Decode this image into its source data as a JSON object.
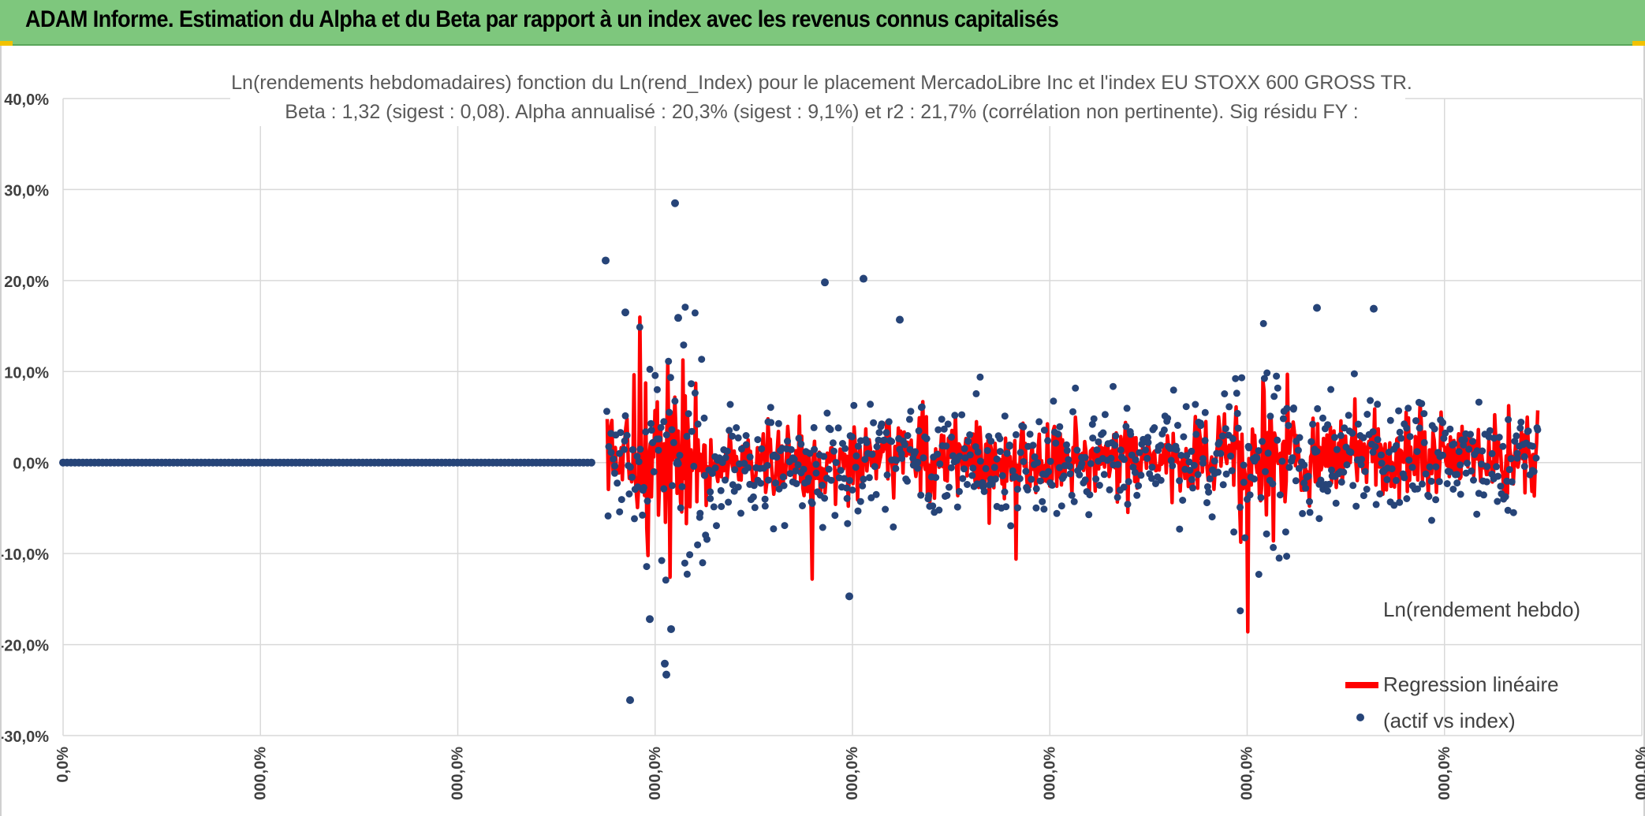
{
  "header": {
    "title": "ADAM Informe. Estimation du Alpha et du Beta par rapport à un index avec les revenus connus capitalisés"
  },
  "colors": {
    "header_bg": "#7ec77d",
    "scatter": "#264478",
    "regression": "#ff0000",
    "grid": "#d9d9d9"
  },
  "chart_data": {
    "type": "scatter",
    "title": "Ln(rendements hebdomadaires) fonction du Ln(rend_Index) pour le placement MercadoLibre Inc et l'index EU STOXX 600 GROSS TR.",
    "subtitle": "Beta : 1,32 (sigest : 0,08). Alpha annualisé : 20,3% (sigest : 9,1%) et r2 : 21,7% (corrélation non pertinente). Sig résidu FY :",
    "xlabel": "",
    "ylabel": "",
    "ylim": [
      -30,
      40
    ],
    "y_ticks": [
      {
        "value": 40,
        "label": "40,0%"
      },
      {
        "value": 30,
        "label": "30,0%"
      },
      {
        "value": 20,
        "label": "20,0%"
      },
      {
        "value": 10,
        "label": "10,0%"
      },
      {
        "value": 0,
        "label": "0,0%"
      },
      {
        "value": -10,
        "label": "-10,0%"
      },
      {
        "value": -20,
        "label": "-20,0%"
      },
      {
        "value": -30,
        "label": "-30,0%"
      }
    ],
    "x_tick_labels": [
      "0,0%",
      "000,0%",
      "000,0%",
      "000,0%",
      "000,0%",
      "000,0%",
      "000,0%",
      "000,0%",
      "000,0%"
    ],
    "grid": true,
    "legend_position": "right",
    "series": [
      {
        "name": "Ln(rendement hebdo)",
        "style": "markers",
        "color": "#264478"
      },
      {
        "name": "Regression linéaire (actif vs index)",
        "style": "line",
        "color": "#ff0000"
      }
    ],
    "highlighted_points": [
      {
        "y": 28.5
      },
      {
        "y": 22.2
      },
      {
        "y": 20.2
      },
      {
        "y": 19.8
      },
      {
        "y": 17.0
      },
      {
        "y": 16.9
      },
      {
        "y": 16.5
      },
      {
        "y": 15.9
      },
      {
        "y": 15.7
      },
      {
        "y": -14.7
      },
      {
        "y": -17.2
      },
      {
        "y": -18.3
      },
      {
        "y": -22.1
      },
      {
        "y": -23.3
      },
      {
        "y": -26.1
      }
    ],
    "regression_extremes": [
      {
        "y": 11.0
      },
      {
        "y": -12.6
      },
      {
        "y": -12.8
      },
      {
        "y": -10.6
      },
      {
        "y": -18.6
      },
      {
        "y": 9.7
      }
    ]
  },
  "legend": {
    "series_label": "Ln(rendement hebdo)",
    "regression_label_line1": "Regression linéaire",
    "regression_label_line2": "(actif vs index)"
  }
}
